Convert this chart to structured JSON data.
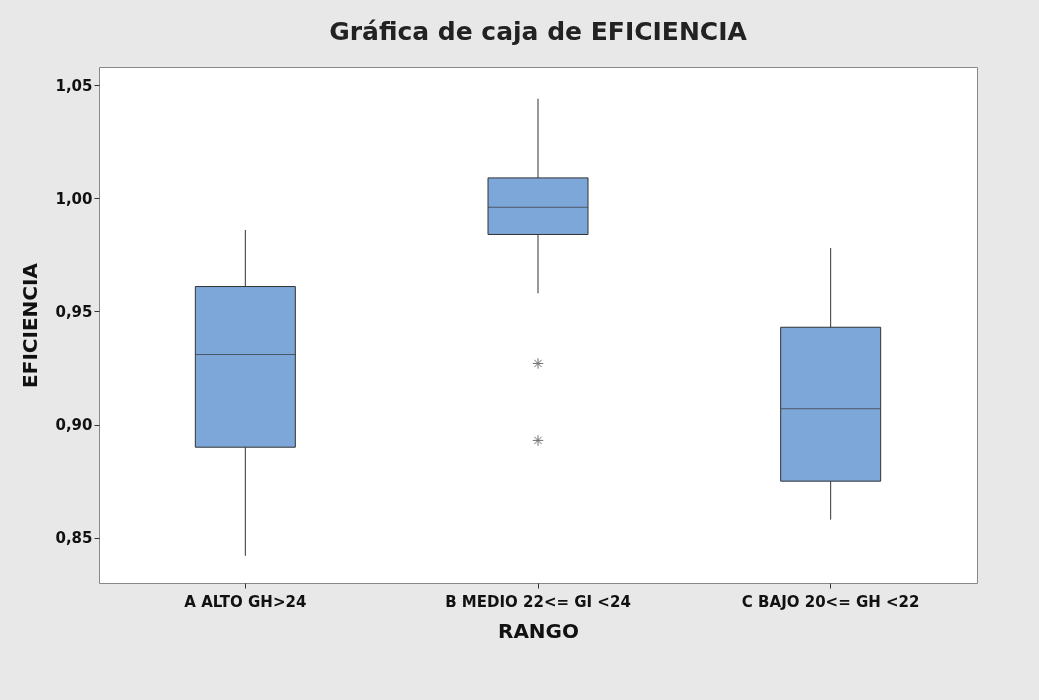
{
  "chart_data": {
    "type": "box",
    "title": "Gráfica de caja de EFICIENCIA",
    "xlabel": "RANGO",
    "ylabel": "EFICIENCIA",
    "categories": [
      "A ALTO GH>24",
      "B MEDIO 22<= GI <24",
      "C BAJO 20<= GH <22"
    ],
    "color": "#7da7d9",
    "boxes": [
      {
        "low": 0.842,
        "q1": 0.89,
        "median": 0.931,
        "q3": 0.961,
        "high": 0.986
      },
      {
        "low": 0.958,
        "q1": 0.984,
        "median": 0.996,
        "q3": 1.009,
        "high": 1.044,
        "outliers": [
          0.927,
          0.893
        ]
      },
      {
        "low": 0.858,
        "q1": 0.875,
        "median": 0.907,
        "q3": 0.943,
        "high": 0.978
      }
    ],
    "ylim": [
      0.83,
      1.058
    ],
    "yticks": [
      {
        "value": 0.85,
        "label": "0,85"
      },
      {
        "value": 0.9,
        "label": "0,90"
      },
      {
        "value": 0.95,
        "label": "0,95"
      },
      {
        "value": 1.0,
        "label": "1,00"
      },
      {
        "value": 1.05,
        "label": "1,05"
      }
    ]
  }
}
